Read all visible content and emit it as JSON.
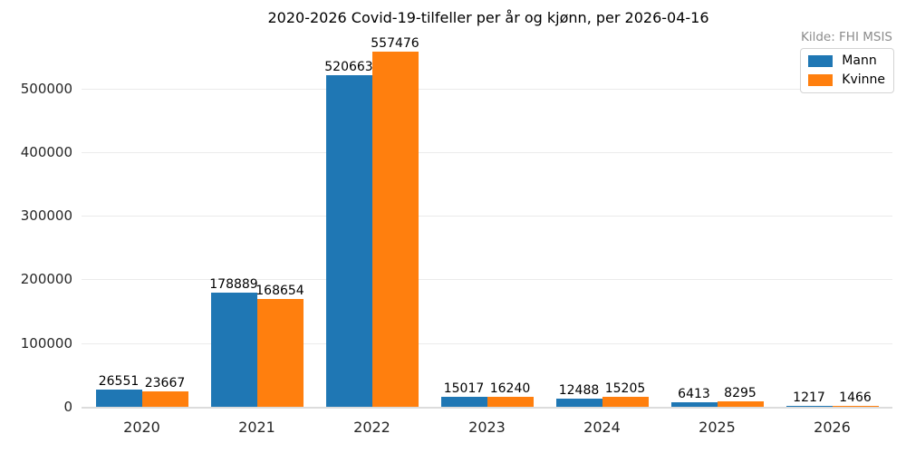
{
  "chart": {
    "title": "2020-2026 Covid-19-tilfeller per år og kjønn, per 2026-04-16",
    "source": "Kilde: FHI MSIS"
  },
  "chart_data": {
    "type": "bar",
    "title": "2020-2026 Covid-19-tilfeller per år og kjønn, per 2026-04-16",
    "annotation": "Kilde: FHI MSIS",
    "categories": [
      "2020",
      "2021",
      "2022",
      "2023",
      "2024",
      "2025",
      "2026"
    ],
    "series": [
      {
        "name": "Mann",
        "color": "#1f77b4",
        "values": [
          26551,
          178889,
          520663,
          15017,
          12488,
          6413,
          1217
        ]
      },
      {
        "name": "Kvinne",
        "color": "#ff7f0e",
        "values": [
          23667,
          168654,
          557476,
          16240,
          15205,
          8295,
          1466
        ]
      }
    ],
    "bar_labels": true,
    "xlabel": "",
    "ylabel": "",
    "yticks": [
      0,
      100000,
      200000,
      300000,
      400000,
      500000
    ],
    "ylim": [
      0,
      560000
    ],
    "grid": true,
    "legend_position": "upper right"
  }
}
